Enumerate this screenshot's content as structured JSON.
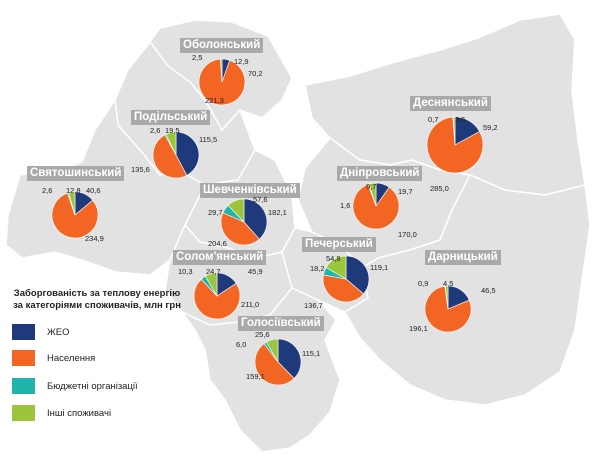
{
  "legend": {
    "title": "Заборгованість за теплову енергію за категоріями споживачів, млн грн",
    "items": [
      {
        "label": "ЖЕО",
        "color": "#1f3a7a"
      },
      {
        "label": "Населення",
        "color": "#f26522"
      },
      {
        "label": "Бюджетні організації",
        "color": "#1fb5ad"
      },
      {
        "label": "Інші споживачі",
        "color": "#9bc53d"
      }
    ]
  },
  "colors": {
    "map_fill": "#e2e2e2",
    "map_border": "#ffffff",
    "label_bg": "#a9a9a9"
  },
  "districts": [
    {
      "name": "Оболонський",
      "values": {
        "zheo": "12,9",
        "naselennia": "221,3",
        "budzhetni": "",
        "inshi": "2,5"
      },
      "extra": "70,2"
    },
    {
      "name": "Подільський",
      "values": {
        "zheo": "115,5",
        "naselennia": "135,6",
        "budzhetni": "2,6",
        "inshi": "19,5"
      }
    },
    {
      "name": "Святошинський",
      "values": {
        "zheo": "40,6",
        "naselennia": "234,9",
        "budzhetni": "2,6",
        "inshi": "12,8"
      }
    },
    {
      "name": "Шевченківський",
      "values": {
        "zheo": "182,1",
        "naselennia": "204,6",
        "budzhetni": "29,7",
        "inshi": "57,6"
      }
    },
    {
      "name": "Солом'янський",
      "values": {
        "zheo": "45,9",
        "naselennia": "211,0",
        "budzhetni": "10,3",
        "inshi": "24,7"
      }
    },
    {
      "name": "Голосіївський",
      "values": {
        "zheo": "115,1",
        "naselennia": "159,1",
        "budzhetni": "6,0",
        "inshi": "25,6"
      }
    },
    {
      "name": "Печерський",
      "values": {
        "zheo": "119,1",
        "naselennia": "136,7",
        "budzhetni": "18,2",
        "inshi": "54,8"
      }
    },
    {
      "name": "Деснянський",
      "values": {
        "zheo": "59,2",
        "naselennia": "285,0",
        "budzhetni": "0,7",
        "inshi": "3,5"
      }
    },
    {
      "name": "Дніпровський",
      "values": {
        "zheo": "19,7",
        "naselennia": "170,0",
        "budzhetni": "1,6",
        "inshi": "9,7"
      }
    },
    {
      "name": "Дарницький",
      "values": {
        "zheo": "46,5",
        "naselennia": "196,1",
        "budzhetni": "0,9",
        "inshi": "4,5"
      }
    }
  ]
}
